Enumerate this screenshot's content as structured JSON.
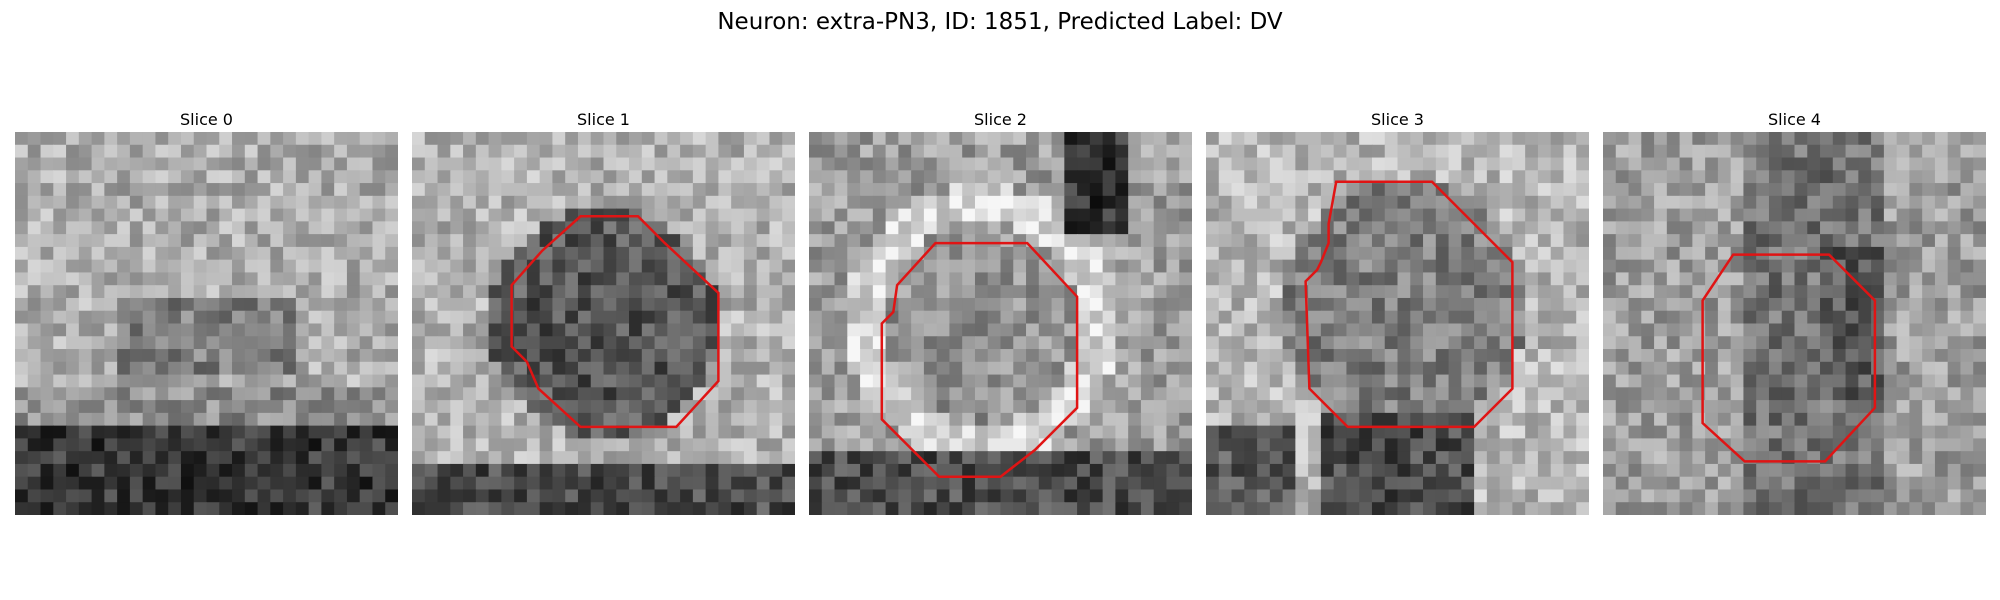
{
  "figure": {
    "title": "Neuron: extra-PN3, ID: 1851, Predicted Label: DV",
    "contour_color": "#e01414",
    "panels": [
      {
        "title": "Slice 0",
        "has_contour": false
      },
      {
        "title": "Slice 1",
        "has_contour": true
      },
      {
        "title": "Slice 2",
        "has_contour": true
      },
      {
        "title": "Slice 3",
        "has_contour": true
      },
      {
        "title": "Slice 4",
        "has_contour": true
      }
    ]
  }
}
